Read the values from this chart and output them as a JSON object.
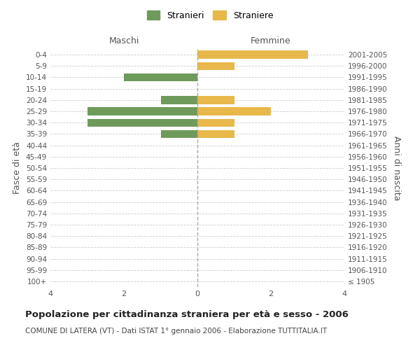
{
  "age_groups": [
    "100+",
    "95-99",
    "90-94",
    "85-89",
    "80-84",
    "75-79",
    "70-74",
    "65-69",
    "60-64",
    "55-59",
    "50-54",
    "45-49",
    "40-44",
    "35-39",
    "30-34",
    "25-29",
    "20-24",
    "15-19",
    "10-14",
    "5-9",
    "0-4"
  ],
  "birth_years": [
    "≤ 1905",
    "1906-1910",
    "1911-1915",
    "1916-1920",
    "1921-1925",
    "1926-1930",
    "1931-1935",
    "1936-1940",
    "1941-1945",
    "1946-1950",
    "1951-1955",
    "1956-1960",
    "1961-1965",
    "1966-1970",
    "1971-1975",
    "1976-1980",
    "1981-1985",
    "1986-1990",
    "1991-1995",
    "1996-2000",
    "2001-2005"
  ],
  "maschi": [
    0,
    0,
    0,
    0,
    0,
    0,
    0,
    0,
    0,
    0,
    0,
    0,
    0,
    1,
    3,
    3,
    1,
    0,
    2,
    0,
    0
  ],
  "femmine": [
    0,
    0,
    0,
    0,
    0,
    0,
    0,
    0,
    0,
    0,
    0,
    0,
    0,
    1,
    1,
    2,
    1,
    0,
    0,
    1,
    3
  ],
  "color_maschi": "#6E9B5B",
  "color_femmine": "#E8B84B",
  "title": "Popolazione per cittadinanza straniera per età e sesso - 2006",
  "subtitle": "COMUNE DI LATERA (VT) - Dati ISTAT 1° gennaio 2006 - Elaborazione TUTTITALIA.IT",
  "legend_maschi": "Stranieri",
  "legend_femmine": "Straniere",
  "ylabel_left": "Fasce di età",
  "ylabel_right": "Anni di nascita",
  "xlabel_left": "Maschi",
  "xlabel_right": "Femmine",
  "xlim": 4,
  "background_color": "#ffffff",
  "grid_color": "#cccccc",
  "dashed_color": "#aaaaaa"
}
